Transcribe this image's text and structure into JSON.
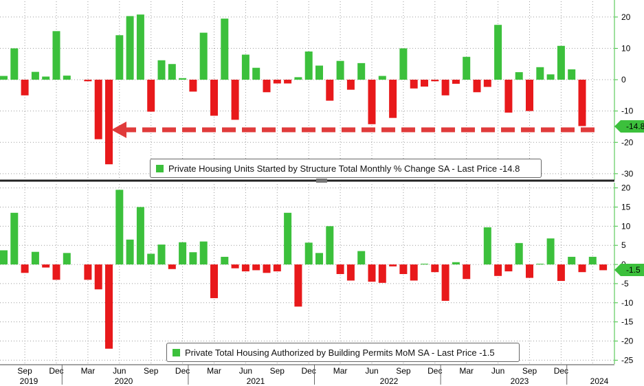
{
  "colors": {
    "positive": "#3cc03c",
    "negative": "#e8191b",
    "axis": "#3cc03c",
    "grid": "#9a9a9a",
    "arrow": "#e03b3b",
    "tag_top": "#3cc03c",
    "tag_bottom": "#3cc03c"
  },
  "chart_data": [
    {
      "type": "bar",
      "title": "Private Housing Units Started by Structure Total Monthly % Change SA - Last Price -14.8",
      "legend": "Private Housing Units Started by Structure Total Monthly % Change SA - Last Price -14.8",
      "last_price": "-14.8",
      "ylim": [
        -32,
        25
      ],
      "yticks": [
        20,
        10,
        0,
        -10,
        -20,
        -30
      ],
      "ytick_labels": [
        "20",
        "10",
        "0",
        "-10",
        "-20",
        "-30"
      ],
      "values": [
        1.2,
        10.0,
        -5.0,
        2.5,
        1.0,
        15.5,
        1.3,
        0.0,
        -0.5,
        -19.0,
        -27.0,
        14.2,
        20.3,
        20.8,
        -10.2,
        6.2,
        5.0,
        0.5,
        -3.8,
        15.0,
        -11.5,
        19.5,
        -12.8,
        8.0,
        3.8,
        -4.0,
        -1.2,
        -1.2,
        0.8,
        9.0,
        4.5,
        -6.7,
        6.0,
        -3.2,
        5.3,
        -14.2,
        1.2,
        -12.2,
        10.0,
        -2.8,
        -2.2,
        -0.5,
        -5.0,
        -1.3,
        7.3,
        -4.0,
        -2.3,
        17.5,
        -10.5,
        2.4,
        -10.0,
        4.0,
        1.7,
        10.8,
        3.3,
        -14.8
      ],
      "annotation": "dashed arrow pointing from the last bar back to the April 2020 low"
    },
    {
      "type": "bar",
      "title": "Private Total Housing Authorized by Building Permits MoM SA - Last Price -1.5",
      "legend": "Private Total Housing Authorized by Building Permits MoM SA - Last Price -1.5",
      "last_price": "-1.5",
      "ylim": [
        -26,
        21
      ],
      "yticks": [
        20,
        15,
        10,
        5,
        0,
        -5,
        -10,
        -15,
        -20,
        -25
      ],
      "ytick_labels": [
        "20",
        "15",
        "10",
        "5",
        "0",
        "-5",
        "-10",
        "-15",
        "-20",
        "-25"
      ],
      "values": [
        3.7,
        13.5,
        -2.2,
        3.3,
        -0.8,
        -4.0,
        3.0,
        0.0,
        -4.0,
        -6.5,
        -22.0,
        19.5,
        6.5,
        15.0,
        2.8,
        5.2,
        -1.2,
        5.8,
        3.2,
        6.0,
        -8.8,
        2.0,
        -1.0,
        -1.8,
        -1.5,
        -2.2,
        -1.8,
        13.5,
        -11.0,
        5.7,
        3.0,
        10.0,
        -2.5,
        -4.2,
        3.5,
        -4.5,
        -4.8,
        -0.5,
        -2.5,
        -4.2,
        0.2,
        -2.0,
        -9.5,
        0.6,
        -3.8,
        0.0,
        9.7,
        -3.0,
        -1.8,
        5.6,
        -3.5,
        0.2,
        6.8,
        -4.3,
        2.0,
        -2.0,
        2.0,
        -1.5
      ]
    }
  ],
  "x_axis": {
    "month_ticks": [
      "Sep",
      "Dec",
      "Mar",
      "Jun",
      "Sep",
      "Dec",
      "Mar",
      "Jun",
      "Sep",
      "Dec",
      "Mar",
      "Jun",
      "Sep",
      "Dec",
      "Mar",
      "Jun",
      "Sep",
      "Dec"
    ],
    "year_labels": [
      "2019",
      "2020",
      "2021",
      "2022",
      "2023",
      "2024"
    ]
  }
}
